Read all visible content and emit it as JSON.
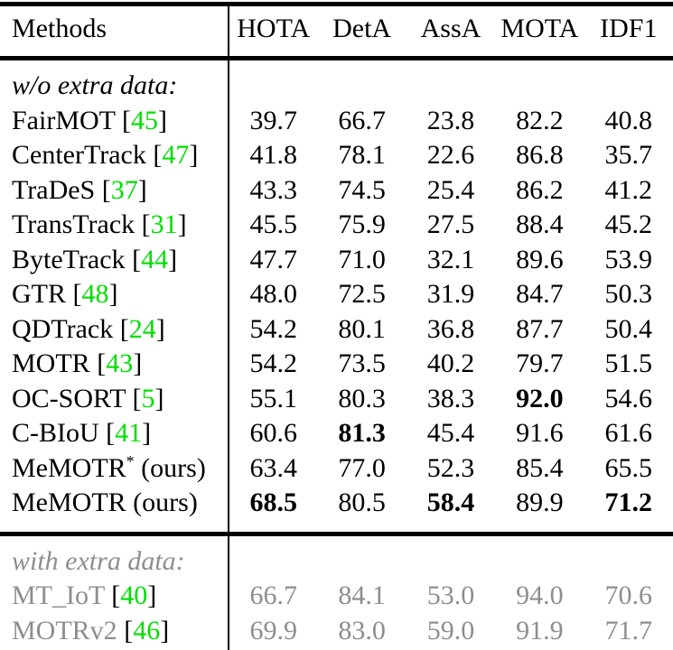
{
  "colors": {
    "text": "#000000",
    "citation_green": "#00de00",
    "muted_gray": "#8e8e8e",
    "rule_black": "#000000",
    "background": "#ffffff"
  },
  "table": {
    "columns": [
      "Methods",
      "HOTA",
      "DetA",
      "AssA",
      "MOTA",
      "IDF1"
    ],
    "sections": [
      {
        "label": "w/o extra data:",
        "muted": false,
        "rows": [
          {
            "method": "FairMOT",
            "cite": "45",
            "star": false,
            "suffix": "",
            "values": [
              "39.7",
              "66.7",
              "23.8",
              "82.2",
              "40.8"
            ],
            "bold_cols": []
          },
          {
            "method": "CenterTrack",
            "cite": "47",
            "star": false,
            "suffix": "",
            "values": [
              "41.8",
              "78.1",
              "22.6",
              "86.8",
              "35.7"
            ],
            "bold_cols": []
          },
          {
            "method": "TraDeS",
            "cite": "37",
            "star": false,
            "suffix": "",
            "values": [
              "43.3",
              "74.5",
              "25.4",
              "86.2",
              "41.2"
            ],
            "bold_cols": []
          },
          {
            "method": "TransTrack",
            "cite": "31",
            "star": false,
            "suffix": "",
            "values": [
              "45.5",
              "75.9",
              "27.5",
              "88.4",
              "45.2"
            ],
            "bold_cols": []
          },
          {
            "method": "ByteTrack",
            "cite": "44",
            "star": false,
            "suffix": "",
            "values": [
              "47.7",
              "71.0",
              "32.1",
              "89.6",
              "53.9"
            ],
            "bold_cols": []
          },
          {
            "method": "GTR",
            "cite": "48",
            "star": false,
            "suffix": "",
            "values": [
              "48.0",
              "72.5",
              "31.9",
              "84.7",
              "50.3"
            ],
            "bold_cols": []
          },
          {
            "method": "QDTrack",
            "cite": "24",
            "star": false,
            "suffix": "",
            "values": [
              "54.2",
              "80.1",
              "36.8",
              "87.7",
              "50.4"
            ],
            "bold_cols": []
          },
          {
            "method": "MOTR",
            "cite": "43",
            "star": false,
            "suffix": "",
            "values": [
              "54.2",
              "73.5",
              "40.2",
              "79.7",
              "51.5"
            ],
            "bold_cols": []
          },
          {
            "method": "OC-SORT",
            "cite": "5",
            "star": false,
            "suffix": "",
            "values": [
              "55.1",
              "80.3",
              "38.3",
              "92.0",
              "54.6"
            ],
            "bold_cols": [
              3
            ]
          },
          {
            "method": "C-BIoU",
            "cite": "41",
            "star": false,
            "suffix": "",
            "values": [
              "60.6",
              "81.3",
              "45.4",
              "91.6",
              "61.6"
            ],
            "bold_cols": [
              1
            ]
          },
          {
            "method": "MeMOTR",
            "cite": "",
            "star": true,
            "suffix": "(ours)",
            "values": [
              "63.4",
              "77.0",
              "52.3",
              "85.4",
              "65.5"
            ],
            "bold_cols": []
          },
          {
            "method": "MeMOTR",
            "cite": "",
            "star": false,
            "suffix": "(ours)",
            "values": [
              "68.5",
              "80.5",
              "58.4",
              "89.9",
              "71.2"
            ],
            "bold_cols": [
              0,
              2,
              4
            ]
          }
        ]
      },
      {
        "label": "with extra data:",
        "muted": true,
        "rows": [
          {
            "method": "MT_IoT",
            "cite": "40",
            "star": false,
            "suffix": "",
            "values": [
              "66.7",
              "84.1",
              "53.0",
              "94.0",
              "70.6"
            ],
            "bold_cols": []
          },
          {
            "method": "MOTRv2",
            "cite": "46",
            "star": false,
            "suffix": "",
            "values": [
              "69.9",
              "83.0",
              "59.0",
              "91.9",
              "71.7"
            ],
            "bold_cols": []
          }
        ]
      }
    ]
  }
}
